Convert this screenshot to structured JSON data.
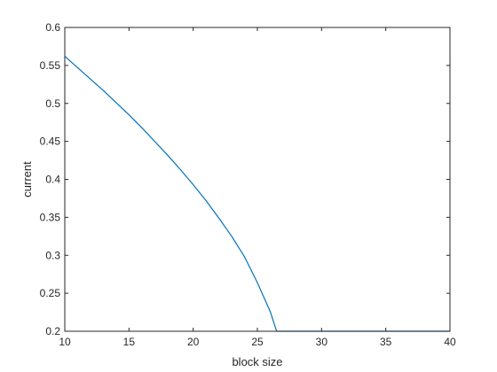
{
  "chart_data": {
    "type": "line",
    "title": "",
    "xlabel": "block size",
    "ylabel": "current",
    "xlim": [
      10,
      40
    ],
    "ylim": [
      0.2,
      0.6
    ],
    "xticks": [
      10,
      15,
      20,
      25,
      30,
      35,
      40
    ],
    "yticks": [
      0.2,
      0.25,
      0.3,
      0.35,
      0.4,
      0.45,
      0.5,
      0.55,
      0.6
    ],
    "xtick_labels": [
      "10",
      "15",
      "20",
      "25",
      "30",
      "35",
      "40"
    ],
    "ytick_labels": [
      "0.2",
      "0.25",
      "0.3",
      "0.35",
      "0.4",
      "0.45",
      "0.5",
      "0.55",
      "0.6"
    ],
    "grid": false,
    "box": true,
    "series": [
      {
        "color": "#0072BD",
        "x": [
          10,
          11,
          12,
          13,
          14,
          15,
          16,
          17,
          18,
          19,
          20,
          21,
          22,
          23,
          24,
          25,
          26,
          26.5,
          27,
          28,
          30,
          35,
          40
        ],
        "y": [
          0.562,
          0.547,
          0.532,
          0.517,
          0.501,
          0.485,
          0.468,
          0.45,
          0.432,
          0.413,
          0.393,
          0.372,
          0.349,
          0.325,
          0.298,
          0.264,
          0.226,
          0.2,
          0.2,
          0.2,
          0.2,
          0.2,
          0.2
        ]
      }
    ]
  }
}
